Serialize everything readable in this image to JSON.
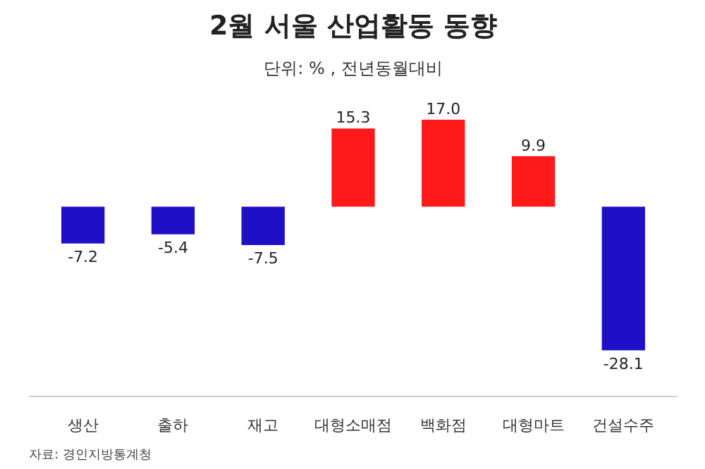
{
  "chart_data": {
    "type": "bar",
    "title": "2월 서울 산업활동 동향",
    "subtitle": "단위: % , 전년동월대비",
    "categories": [
      "생산",
      "출하",
      "재고",
      "대형소매점",
      "백화점",
      "대형마트",
      "건설수주"
    ],
    "values": [
      -7.2,
      -5.4,
      -7.5,
      15.3,
      17.0,
      9.9,
      -28.1
    ],
    "colors": [
      "#1f10c8",
      "#1f10c8",
      "#1f10c8",
      "#ff1a1a",
      "#ff1a1a",
      "#ff1a1a",
      "#1f10c8"
    ],
    "value_labels": [
      "-7.2",
      "-5.4",
      "-7.5",
      "15.3",
      "17.0",
      "9.9",
      "-28.1"
    ],
    "annotations": [
      "자료: 경인지방통계청"
    ]
  }
}
